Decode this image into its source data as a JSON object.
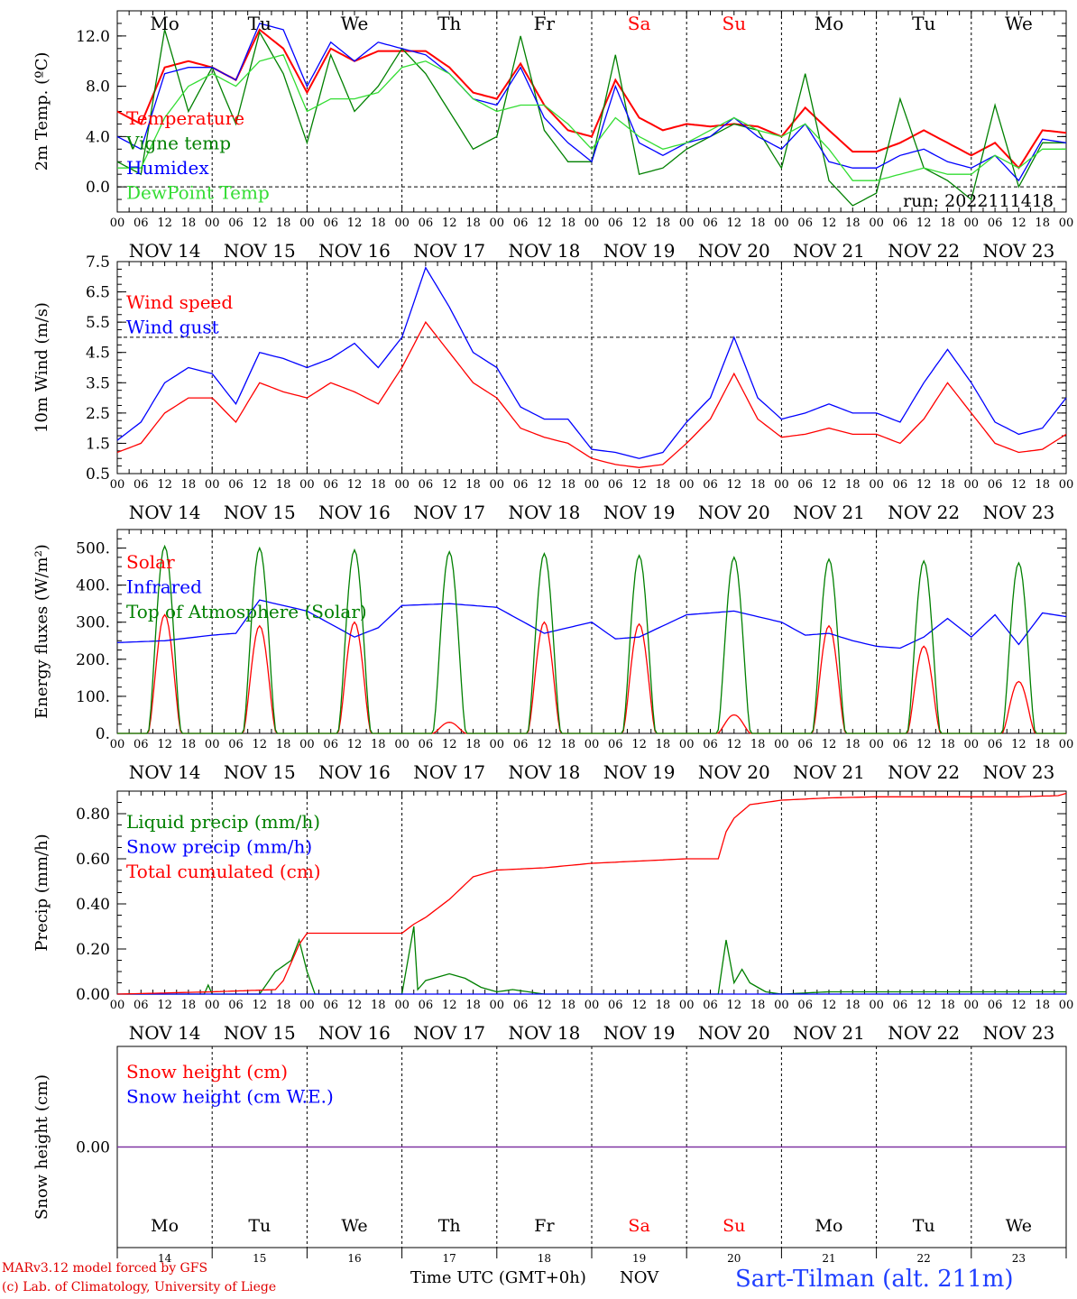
{
  "colors": {
    "red": "#ff0000",
    "blue": "#0000ff",
    "dark_green": "#008000",
    "light_green": "#33dd33",
    "purple": "#7b2fa0",
    "weekday_red": "#ff0000",
    "subtitle_blue": "#1f3fff"
  },
  "weekdays": [
    "Mo",
    "Tu",
    "We",
    "Th",
    "Fr",
    "Sa",
    "Su",
    "Mo",
    "Tu",
    "We"
  ],
  "weekday_colors": [
    "#000000",
    "#000000",
    "#000000",
    "#000000",
    "#000000",
    "#ff0000",
    "#ff0000",
    "#000000",
    "#000000",
    "#000000"
  ],
  "dates": [
    "NOV 14",
    "NOV 15",
    "NOV 16",
    "NOV 17",
    "NOV 18",
    "NOV 19",
    "NOV 20",
    "NOV 21",
    "NOV 22",
    "NOV 23"
  ],
  "hour_ticks": [
    "00",
    "06",
    "12",
    "18"
  ],
  "day_numbers": [
    "14",
    "15",
    "16",
    "17",
    "18",
    "19",
    "20",
    "21",
    "22",
    "23"
  ],
  "footer": {
    "model_line": "MARv3.12 model forced by GFS",
    "credit_line": "(c) Lab. of Climatology, University of Liege",
    "time_label": "Time UTC (GMT+0h)",
    "month_label": "NOV",
    "station": "Sart-Tilman (alt. 211m)"
  },
  "chart_data": [
    {
      "type": "line",
      "ylabel": "2m Temp. (ºC)",
      "ylim": [
        -2,
        14
      ],
      "yticks": [
        0,
        4,
        8,
        12
      ],
      "ytick_labels": [
        "0.0",
        "4.0",
        "8.0",
        "12.0"
      ],
      "reference_line": 0,
      "annotation": "run: 2022111418",
      "x_unit": "hours since NOV 14 00 UTC",
      "series": [
        {
          "name": "Temperature",
          "color": "#ff0000",
          "x": [
            0,
            6,
            12,
            18,
            24,
            30,
            36,
            42,
            48,
            54,
            60,
            66,
            72,
            78,
            84,
            90,
            96,
            102,
            108,
            114,
            120,
            126,
            132,
            138,
            144,
            150,
            156,
            162,
            168,
            174,
            180,
            186,
            192,
            198,
            204,
            210,
            216,
            222,
            228,
            234,
            240
          ],
          "values": [
            6.0,
            5.0,
            9.5,
            10.0,
            9.5,
            8.5,
            12.5,
            11.0,
            7.5,
            11.0,
            10.0,
            10.8,
            10.8,
            10.8,
            9.5,
            7.5,
            7.0,
            9.8,
            6.5,
            4.5,
            4.0,
            8.5,
            5.5,
            4.5,
            5.0,
            4.8,
            5.0,
            4.8,
            4.0,
            6.3,
            4.5,
            2.8,
            2.8,
            3.5,
            4.5,
            3.5,
            2.5,
            3.5,
            1.5,
            4.5,
            4.3
          ]
        },
        {
          "name": "Vigne temp",
          "color": "#008000",
          "x": [
            0,
            6,
            12,
            18,
            24,
            30,
            36,
            42,
            48,
            54,
            60,
            66,
            72,
            78,
            84,
            90,
            96,
            102,
            108,
            114,
            120,
            126,
            132,
            138,
            144,
            150,
            156,
            162,
            168,
            174,
            180,
            186,
            192,
            198,
            204,
            210,
            216,
            222,
            228,
            234,
            240
          ],
          "values": [
            2.0,
            1.0,
            12.5,
            6.0,
            9.5,
            5.0,
            12.3,
            9.0,
            3.5,
            10.5,
            6.0,
            8.0,
            11.0,
            9.0,
            6.0,
            3.0,
            4.0,
            12.0,
            4.5,
            2.0,
            2.0,
            10.5,
            1.0,
            1.5,
            3.0,
            4.0,
            5.0,
            4.5,
            1.5,
            9.0,
            0.5,
            -1.5,
            -0.5,
            7.0,
            1.5,
            0.5,
            -1.0,
            6.5,
            0.0,
            3.5,
            3.5
          ]
        },
        {
          "name": "Humidex",
          "color": "#0000ff",
          "x": [
            0,
            6,
            12,
            18,
            24,
            30,
            36,
            42,
            48,
            54,
            60,
            66,
            72,
            78,
            84,
            90,
            96,
            102,
            108,
            114,
            120,
            126,
            132,
            138,
            144,
            150,
            156,
            162,
            168,
            174,
            180,
            186,
            192,
            198,
            204,
            210,
            216,
            222,
            228,
            234,
            240
          ],
          "values": [
            4.0,
            3.0,
            9.0,
            9.5,
            9.5,
            8.5,
            13.0,
            12.5,
            8.0,
            11.5,
            10.0,
            11.5,
            11.0,
            10.5,
            9.0,
            7.0,
            6.5,
            9.5,
            5.5,
            3.5,
            2.0,
            8.0,
            3.5,
            2.5,
            3.5,
            4.0,
            5.5,
            4.0,
            3.0,
            5.0,
            2.0,
            1.5,
            1.5,
            2.5,
            3.0,
            2.0,
            1.5,
            2.5,
            0.5,
            3.8,
            3.5
          ]
        },
        {
          "name": "DewPoint Temp",
          "color": "#33dd33",
          "x": [
            0,
            6,
            12,
            18,
            24,
            30,
            36,
            42,
            48,
            54,
            60,
            66,
            72,
            78,
            84,
            90,
            96,
            102,
            108,
            114,
            120,
            126,
            132,
            138,
            144,
            150,
            156,
            162,
            168,
            174,
            180,
            186,
            192,
            198,
            204,
            210,
            216,
            222,
            228,
            234,
            240
          ],
          "values": [
            1.5,
            1.5,
            5.5,
            8.0,
            9.0,
            8.0,
            10.0,
            10.5,
            6.0,
            7.0,
            7.0,
            7.5,
            9.5,
            10.0,
            9.0,
            7.0,
            6.0,
            6.5,
            6.5,
            5.0,
            3.0,
            5.5,
            4.0,
            3.0,
            3.5,
            4.5,
            5.5,
            4.5,
            4.0,
            5.0,
            3.0,
            0.5,
            0.5,
            1.0,
            1.5,
            1.0,
            1.0,
            2.5,
            1.5,
            3.0,
            3.0
          ]
        }
      ]
    },
    {
      "type": "line",
      "ylabel": "10m Wind (m/s)",
      "ylim": [
        0.5,
        7.5
      ],
      "yticks": [
        0.5,
        1.5,
        2.5,
        3.5,
        4.5,
        5.5,
        6.5,
        7.5
      ],
      "ytick_labels": [
        "0.5",
        "1.5",
        "2.5",
        "3.5",
        "4.5",
        "5.5",
        "6.5",
        "7.5"
      ],
      "reference_line": 5.0,
      "series": [
        {
          "name": "Wind speed",
          "color": "#ff0000",
          "x": [
            0,
            6,
            12,
            18,
            24,
            30,
            36,
            42,
            48,
            54,
            60,
            66,
            72,
            78,
            84,
            90,
            96,
            102,
            108,
            114,
            120,
            126,
            132,
            138,
            144,
            150,
            156,
            162,
            168,
            174,
            180,
            186,
            192,
            198,
            204,
            210,
            216,
            222,
            228,
            234,
            240
          ],
          "values": [
            1.2,
            1.5,
            2.5,
            3.0,
            3.0,
            2.2,
            3.5,
            3.2,
            3.0,
            3.5,
            3.2,
            2.8,
            4.0,
            5.5,
            4.5,
            3.5,
            3.0,
            2.0,
            1.7,
            1.5,
            1.0,
            0.8,
            0.7,
            0.8,
            1.5,
            2.3,
            3.8,
            2.3,
            1.7,
            1.8,
            2.0,
            1.8,
            1.8,
            1.5,
            2.3,
            3.5,
            2.5,
            1.5,
            1.2,
            1.3,
            1.8
          ]
        },
        {
          "name": "Wind gust",
          "color": "#0000ff",
          "x": [
            0,
            6,
            12,
            18,
            24,
            30,
            36,
            42,
            48,
            54,
            60,
            66,
            72,
            78,
            84,
            90,
            96,
            102,
            108,
            114,
            120,
            126,
            132,
            138,
            144,
            150,
            156,
            162,
            168,
            174,
            180,
            186,
            192,
            198,
            204,
            210,
            216,
            222,
            228,
            234,
            240
          ],
          "values": [
            1.6,
            2.2,
            3.5,
            4.0,
            3.8,
            2.8,
            4.5,
            4.3,
            4.0,
            4.3,
            4.8,
            4.0,
            5.0,
            7.3,
            6.0,
            4.5,
            4.0,
            2.7,
            2.3,
            2.3,
            1.3,
            1.2,
            1.0,
            1.2,
            2.2,
            3.0,
            5.0,
            3.0,
            2.3,
            2.5,
            2.8,
            2.5,
            2.5,
            2.2,
            3.5,
            4.6,
            3.5,
            2.2,
            1.8,
            2.0,
            3.0
          ]
        }
      ]
    },
    {
      "type": "line",
      "ylabel": "Energy fluxes (W/m²)",
      "ylim": [
        0,
        550
      ],
      "yticks": [
        0,
        100,
        200,
        300,
        400,
        500
      ],
      "ytick_labels": [
        "0.",
        "100.",
        "200.",
        "300.",
        "400.",
        "500."
      ],
      "series": [
        {
          "name": "Solar",
          "color": "#ff0000",
          "kind": "daily_bell",
          "day_peaks": [
            320,
            290,
            300,
            30,
            300,
            295,
            50,
            290,
            235,
            140
          ]
        },
        {
          "name": "Infrared",
          "color": "#0000ff",
          "x": [
            0,
            12,
            24,
            30,
            36,
            48,
            60,
            66,
            72,
            84,
            96,
            108,
            120,
            126,
            132,
            144,
            156,
            168,
            174,
            180,
            186,
            192,
            198,
            204,
            210,
            216,
            222,
            228,
            234,
            240
          ],
          "values": [
            245,
            250,
            265,
            270,
            360,
            330,
            260,
            285,
            345,
            350,
            340,
            270,
            300,
            255,
            260,
            320,
            330,
            300,
            265,
            270,
            250,
            235,
            230,
            260,
            310,
            260,
            320,
            240,
            325,
            315
          ]
        },
        {
          "name": "Top of Atmosphere (Solar)",
          "color": "#008000",
          "kind": "daily_bell",
          "day_peaks": [
            505,
            500,
            495,
            490,
            485,
            480,
            475,
            470,
            465,
            460
          ]
        }
      ]
    },
    {
      "type": "line",
      "ylabel": "Precip (mm/h)",
      "ylim": [
        0,
        0.9
      ],
      "yticks": [
        0,
        0.2,
        0.4,
        0.6,
        0.8
      ],
      "ytick_labels": [
        "0.00",
        "0.20",
        "0.40",
        "0.60",
        "0.80"
      ],
      "series": [
        {
          "name": "Liquid precip (mm/h)",
          "color": "#008000",
          "x": [
            0,
            22,
            23,
            24,
            36,
            40,
            44,
            46,
            48,
            50,
            72,
            75,
            76,
            78,
            80,
            84,
            88,
            92,
            96,
            100,
            104,
            108,
            120,
            144,
            152,
            154,
            156,
            158,
            160,
            164,
            168,
            180,
            240
          ],
          "values": [
            0,
            0,
            0.04,
            0,
            0,
            0.1,
            0.15,
            0.24,
            0.1,
            0,
            0,
            0.3,
            0.02,
            0.06,
            0.07,
            0.09,
            0.07,
            0.03,
            0.01,
            0.02,
            0.01,
            0,
            0,
            0,
            0,
            0.24,
            0.05,
            0.11,
            0.05,
            0.01,
            0,
            0.01,
            0.01
          ]
        },
        {
          "name": "Snow precip (mm/h)",
          "color": "#0000ff",
          "x": [
            0,
            240
          ],
          "values": [
            0,
            0
          ]
        },
        {
          "name": "Total cumulated (cm)",
          "color": "#ff0000",
          "x": [
            0,
            24,
            40,
            42,
            46,
            48,
            72,
            75,
            78,
            84,
            90,
            96,
            108,
            120,
            132,
            144,
            152,
            154,
            156,
            160,
            168,
            180,
            192,
            216,
            228,
            238,
            240
          ],
          "values": [
            0,
            0.01,
            0.02,
            0.06,
            0.22,
            0.27,
            0.27,
            0.31,
            0.34,
            0.42,
            0.52,
            0.55,
            0.56,
            0.58,
            0.59,
            0.6,
            0.6,
            0.72,
            0.78,
            0.84,
            0.86,
            0.87,
            0.875,
            0.875,
            0.875,
            0.88,
            0.89
          ]
        }
      ]
    },
    {
      "type": "line",
      "ylabel": "Snow height (cm)",
      "ylim": [
        -1,
        1
      ],
      "yticks": [
        0
      ],
      "ytick_labels": [
        "0.00"
      ],
      "series": [
        {
          "name": "Snow height (cm)",
          "color": "#ff0000",
          "x": [
            0,
            240
          ],
          "values": [
            0,
            0
          ]
        },
        {
          "name": "Snow height (cm W.E.)",
          "color": "#0000ff",
          "x": [
            0,
            240
          ],
          "values": [
            0,
            0
          ]
        }
      ]
    }
  ]
}
